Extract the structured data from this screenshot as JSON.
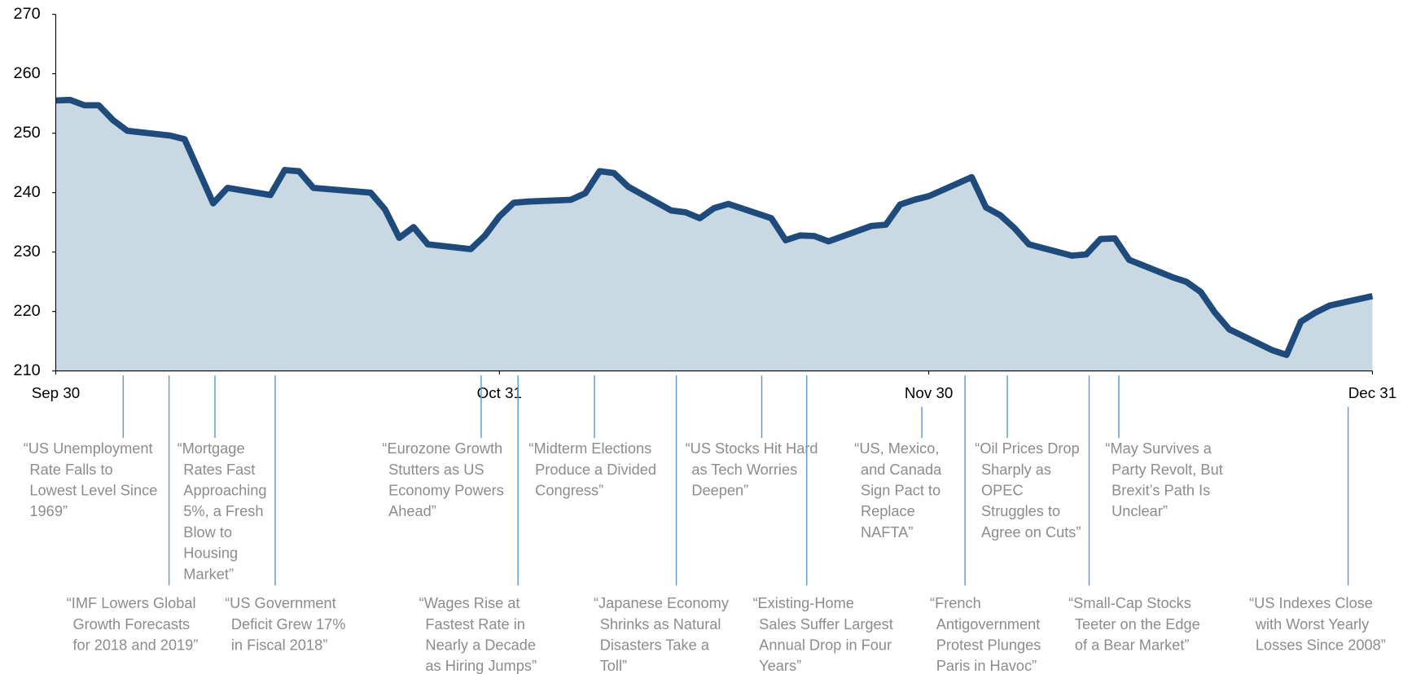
{
  "chart_data": {
    "type": "area",
    "x": [
      "Sep 30",
      "Oct 1",
      "Oct 2",
      "Oct 3",
      "Oct 4",
      "Oct 5",
      "Oct 8",
      "Oct 9",
      "Oct 11",
      "Oct 12",
      "Oct 15",
      "Oct 16",
      "Oct 17",
      "Oct 18",
      "Oct 22",
      "Oct 23",
      "Oct 24",
      "Oct 25",
      "Oct 26",
      "Oct 29",
      "Oct 30",
      "Oct 31",
      "Nov 1",
      "Nov 2",
      "Nov 5",
      "Nov 6",
      "Nov 7",
      "Nov 8",
      "Nov 9",
      "Nov 12",
      "Nov 13",
      "Nov 14",
      "Nov 15",
      "Nov 16",
      "Nov 19",
      "Nov 20",
      "Nov 21",
      "Nov 22",
      "Nov 23",
      "Nov 26",
      "Nov 27",
      "Nov 28",
      "Nov 29",
      "Nov 30",
      "Dec 3",
      "Dec 4",
      "Dec 5",
      "Dec 6",
      "Dec 7",
      "Dec 10",
      "Dec 11",
      "Dec 12",
      "Dec 13",
      "Dec 14",
      "Dec 17",
      "Dec 18",
      "Dec 19",
      "Dec 20",
      "Dec 21",
      "Dec 24",
      "Dec 25",
      "Dec 26",
      "Dec 27",
      "Dec 28",
      "Dec 31"
    ],
    "values": [
      255.5,
      255.6,
      254.7,
      254.7,
      252.2,
      250.4,
      249.6,
      249,
      238.2,
      240.8,
      239.6,
      243.8,
      243.6,
      240.8,
      240,
      237.2,
      232.4,
      234.2,
      231.3,
      230.5,
      232.8,
      236,
      238.3,
      238.5,
      238.8,
      239.9,
      243.6,
      243.3,
      241,
      237,
      236.7,
      235.7,
      237.4,
      238.1,
      235.7,
      232,
      232.8,
      232.7,
      231.8,
      234.4,
      234.6,
      238,
      238.8,
      239.4,
      242.6,
      237.5,
      236.2,
      234,
      231.3,
      229.4,
      229.6,
      232.2,
      232.3,
      228.7,
      225.8,
      225,
      223.3,
      219.8,
      217,
      213.5,
      212.7,
      218.3,
      219.8,
      221,
      222.6
    ],
    "color": "#1f4a7c",
    "fill_color": "#c9d9e3",
    "xlim": [
      "Sep 30",
      "Dec 31"
    ],
    "xticks": [
      "Sep 30",
      "Oct 31",
      "Nov 30",
      "Dec 31"
    ],
    "ylim": [
      210,
      270
    ],
    "yticks": [
      210,
      220,
      230,
      240,
      250,
      260,
      270
    ],
    "annotation_color": "#5b9bd5",
    "annotations": [
      {
        "lines": [
          "“US Unemployment",
          "Rate Falls to",
          "Lowest Level Since",
          "1969”"
        ]
      },
      {
        "lines": [
          "“IMF Lowers Global",
          "Growth Forecasts",
          "for 2018 and 2019”"
        ]
      },
      {
        "lines": [
          "“Mortgage",
          "Rates Fast",
          "Approaching",
          "5%, a Fresh",
          "Blow to",
          "Housing",
          "Market”"
        ]
      },
      {
        "lines": [
          "“US Government",
          "Deficit Grew 17%",
          "in Fiscal 2018”"
        ]
      },
      {
        "lines": [
          "“Eurozone Growth",
          "Stutters as US",
          "Economy Powers",
          "Ahead”"
        ]
      },
      {
        "lines": [
          "“Wages Rise at",
          "Fastest Rate in",
          "Nearly a Decade",
          "as Hiring Jumps”"
        ]
      },
      {
        "lines": [
          "“Midterm Elections",
          "Produce a Divided",
          "Congress”"
        ]
      },
      {
        "lines": [
          "“Japanese Economy",
          "Shrinks as Natural",
          "Disasters Take a",
          "Toll”"
        ]
      },
      {
        "lines": [
          "“US Stocks Hit Hard",
          "as Tech Worries",
          "Deepen”"
        ]
      },
      {
        "lines": [
          "“Existing-Home",
          "Sales Suffer Largest",
          "Annual Drop in Four",
          "Years”"
        ]
      },
      {
        "lines": [
          "“US, Mexico,",
          "and Canada",
          "Sign Pact to",
          "Replace",
          "NAFTA”"
        ]
      },
      {
        "lines": [
          "“French",
          "Antigovernment",
          "Protest Plunges",
          "Paris in Havoc”"
        ]
      },
      {
        "lines": [
          "“Oil Prices Drop",
          "Sharply as",
          "OPEC",
          "Struggles to",
          "Agree on Cuts”"
        ]
      },
      {
        "lines": [
          "“Small-Cap Stocks",
          "Teeter on the Edge",
          "of a Bear Market”"
        ]
      },
      {
        "lines": [
          "“May Survives a",
          "Party Revolt, But",
          "Brexit’s Path Is",
          "Unclear”"
        ]
      },
      {
        "lines": [
          "“US Indexes Close",
          "with Worst Yearly",
          "Losses Since 2008”"
        ]
      }
    ]
  }
}
